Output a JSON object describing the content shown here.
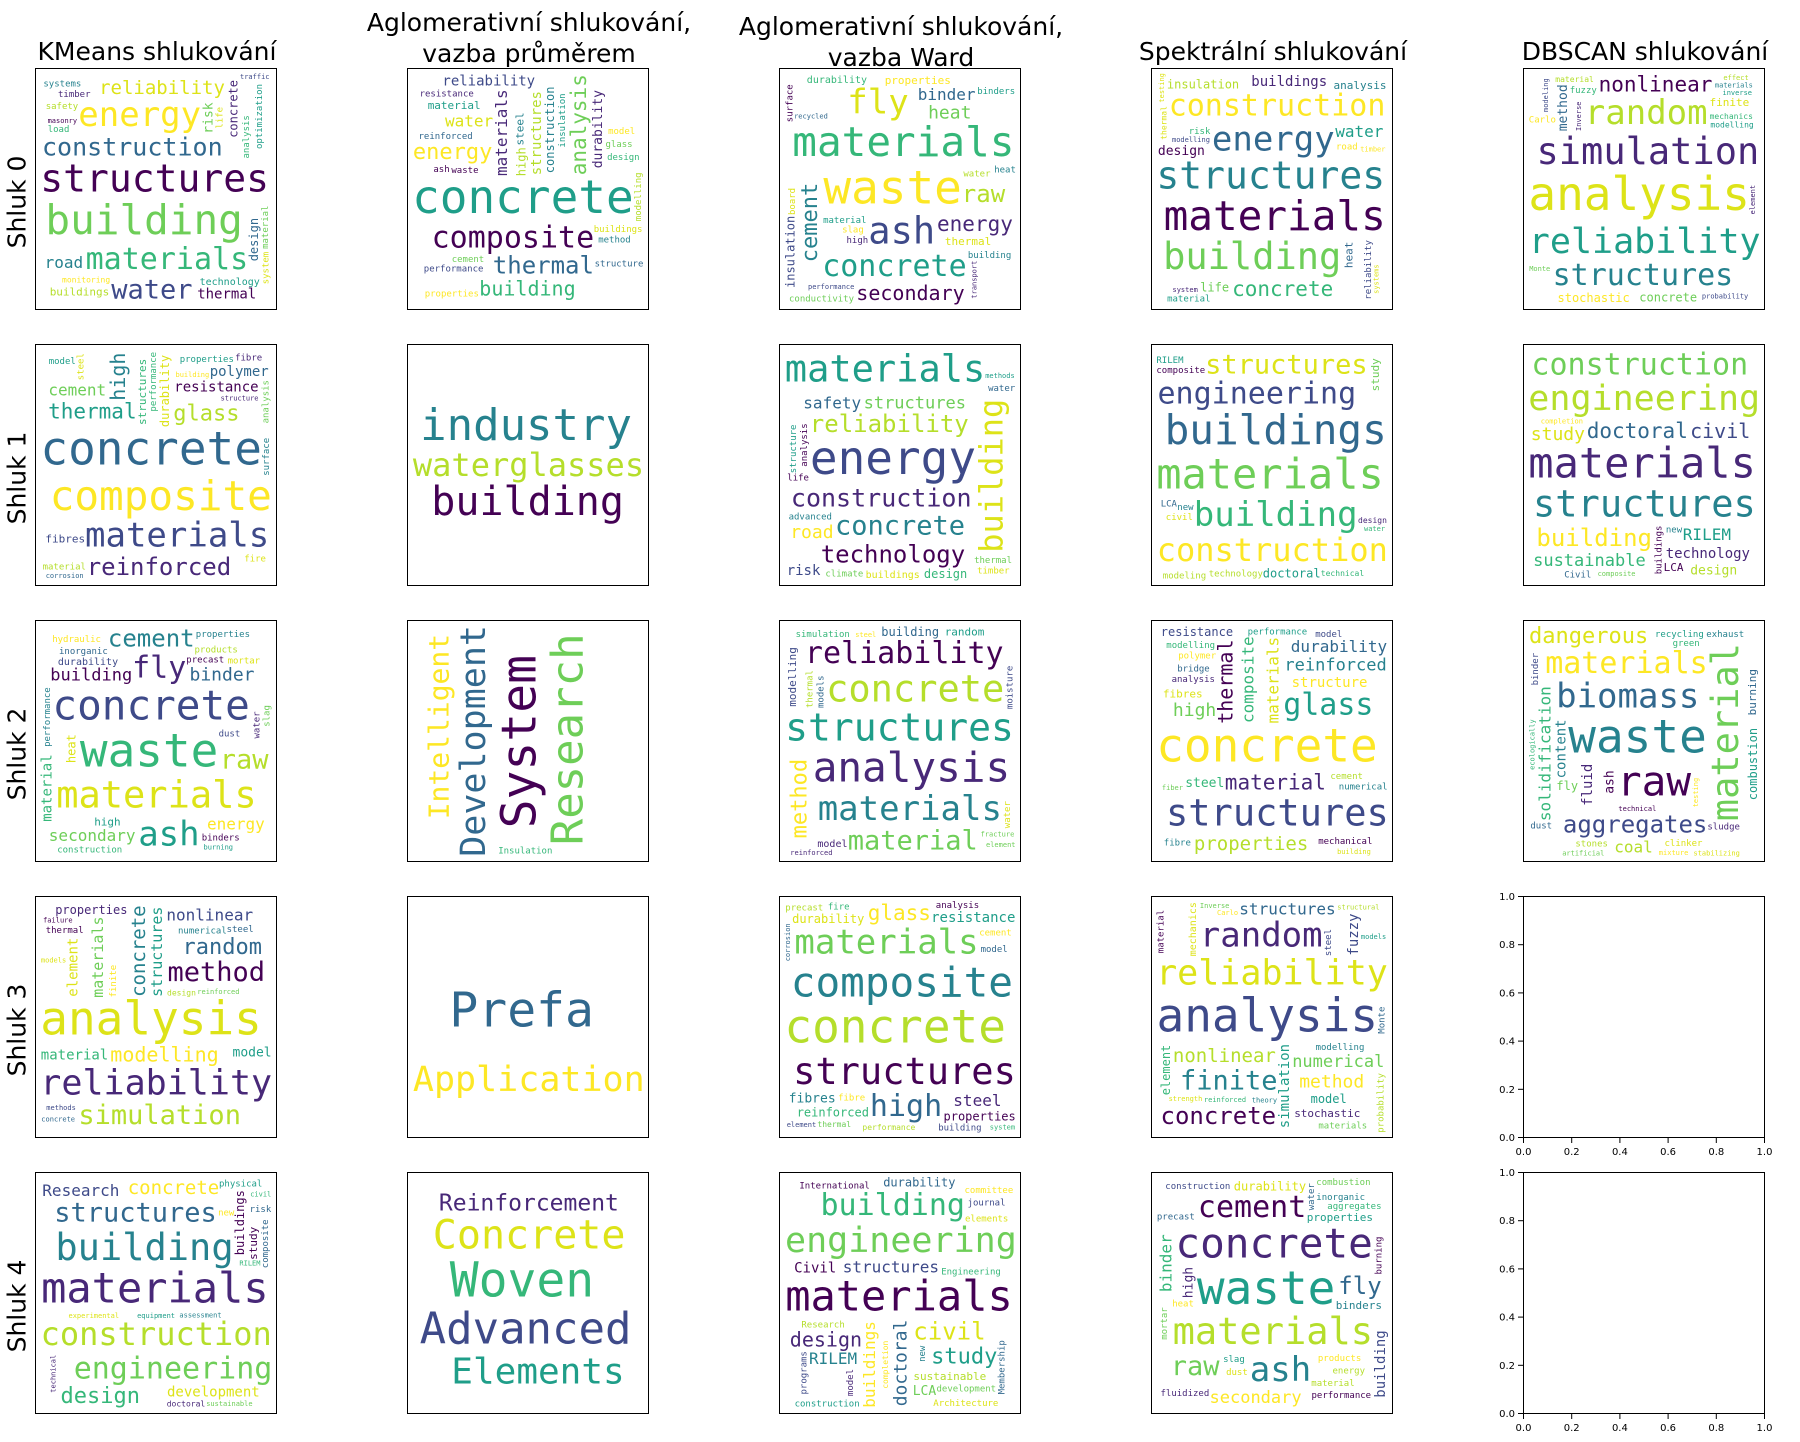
{
  "chart_data": {
    "type": "wordcloud-grid",
    "columns": [
      "KMeans shlukování",
      "Aglomerativní shlukování,\nvazba průměrem",
      "Aglomerativní shlukování,\nvazba Ward",
      "Spektrální shlukování",
      "DBSCAN shlukování"
    ],
    "rows": [
      "Shluk 0",
      "Shluk 1",
      "Shluk 2",
      "Shluk 3",
      "Shluk 4"
    ],
    "palette": [
      "#440154",
      "#482878",
      "#3e4a89",
      "#31688e",
      "#26828e",
      "#1f9e89",
      "#35b779",
      "#6ece58",
      "#b5de2b",
      "#dde318",
      "#fde725"
    ],
    "empty_axes": {
      "xlim": [
        0,
        1
      ],
      "ylim": [
        0,
        1
      ],
      "ticks": [
        "0.0",
        "0.2",
        "0.4",
        "0.6",
        "0.8",
        "1.0"
      ]
    },
    "panels": [
      [
        {
          "words": [
            "structures",
            "building",
            "construction",
            "energy",
            "materials",
            "water",
            "reliability",
            "technology",
            "concrete",
            "buildings",
            "road",
            "thermal",
            "risk",
            "design",
            "monitoring",
            "analysis",
            "insulation",
            "life",
            "optimization",
            "timber",
            "safety",
            "systems",
            "masonry",
            "material",
            "cycle",
            "durability",
            "load",
            "traffic",
            "system",
            "assessment"
          ]
        },
        {
          "words": [
            "concrete",
            "materials",
            "structures",
            "construction",
            "composite",
            "analysis",
            "thermal",
            "energy",
            "building",
            "reliability",
            "water",
            "material",
            "durability",
            "high",
            "steel",
            "waste",
            "cement",
            "reinforced",
            "properties",
            "design",
            "performance",
            "buildings",
            "insulation",
            "resistance",
            "modelling",
            "method",
            "ash",
            "glass",
            "structure",
            "model"
          ]
        },
        {
          "words": [
            "waste",
            "materials",
            "ash",
            "fly",
            "concrete",
            "energy",
            "raw",
            "cement",
            "secondary",
            "heat",
            "binder",
            "properties",
            "durability",
            "insulation",
            "thermal",
            "material",
            "high",
            "water",
            "building",
            "surface",
            "conductivity",
            "recycled",
            "slag",
            "environment",
            "performance",
            "board",
            "binders",
            "transport",
            "construction",
            "heat"
          ]
        },
        {
          "words": [
            "structures",
            "materials",
            "building",
            "energy",
            "construction",
            "concrete",
            "reliability",
            "thermal",
            "water",
            "buildings",
            "insulation",
            "analysis",
            "design",
            "life",
            "heat",
            "road",
            "risk",
            "monitoring",
            "systems",
            "material",
            "system",
            "technology",
            "assessment",
            "optimization",
            "transport",
            "safety",
            "timber",
            "method",
            "modelling",
            "testing"
          ]
        },
        {
          "words": [
            "analysis",
            "reliability",
            "simulation",
            "random",
            "structures",
            "nonlinear",
            "concrete",
            "method",
            "stochastic",
            "mechanics",
            "probability",
            "finite",
            "modelling",
            "element",
            "material",
            "materials",
            "structural",
            "Monte",
            "statistical",
            "Carlo",
            "fuzzy",
            "modeling",
            "methods",
            "inverse",
            "Inverse",
            "effect",
            "theory",
            "failure",
            "computational",
            "algorithms"
          ]
        }
      ],
      [
        {
          "words": [
            "concrete",
            "composite",
            "structures",
            "materials",
            "durability",
            "thermal",
            "reinforced",
            "glass",
            "high",
            "resistance",
            "cement",
            "polymer",
            "reinforcement",
            "performance",
            "fibres",
            "steel",
            "properties",
            "structure",
            "material",
            "surface",
            "experimental",
            "analysis",
            "corrosion",
            "building",
            "temperature",
            "insulation",
            "fire",
            "model",
            "fibre",
            "numerical"
          ]
        },
        {
          "words": [
            "waterglasses",
            "industry",
            "building"
          ]
        },
        {
          "words": [
            "energy",
            "building",
            "materials",
            "construction",
            "reliability",
            "concrete",
            "technology",
            "structures",
            "safety",
            "road",
            "design",
            "risk",
            "buildings",
            "methods",
            "assessment",
            "durability",
            "advanced",
            "analysis",
            "thermal",
            "water",
            "technical",
            "insulation",
            "material",
            "timber",
            "structure",
            "works",
            "optimization",
            "systems",
            "life",
            "climate"
          ]
        },
        {
          "words": [
            "materials",
            "buildings",
            "construction",
            "building",
            "engineering",
            "structures",
            "doctoral",
            "design",
            "technology",
            "sustainable",
            "composite",
            "study",
            "advanced",
            "equipment",
            "technical",
            "mathematical",
            "civil",
            "RILEM",
            "properties",
            "modeling",
            "new",
            "Civil",
            "durability",
            "LCA",
            "completion",
            "water",
            "optimization",
            "experience",
            "Engineering",
            "programs"
          ]
        },
        {
          "words": [
            "materials",
            "engineering",
            "structures",
            "buildings",
            "construction",
            "doctoral",
            "building",
            "sustainable",
            "civil",
            "study",
            "RILEM",
            "technology",
            "design",
            "new",
            "LCA",
            "composite",
            "Civil",
            "completion",
            "durability",
            "equipment",
            "Engineering",
            "experience",
            "Membership",
            "modeling",
            "Research",
            "Architecture",
            "programs",
            "mathematical",
            "development",
            "technical"
          ]
        }
      ],
      [
        {
          "words": [
            "waste",
            "concrete",
            "materials",
            "ash",
            "fly",
            "raw",
            "cement",
            "building",
            "secondary",
            "binder",
            "energy",
            "material",
            "durability",
            "heat",
            "high",
            "water",
            "products",
            "properties",
            "binders",
            "slag",
            "inorganic",
            "hydraulic",
            "construction",
            "dust",
            "mortar",
            "burning",
            "insulation",
            "transport",
            "performance",
            "precast"
          ]
        },
        {
          "words": [
            "System",
            "Research",
            "Development",
            "Intelligent",
            "Insulation"
          ]
        },
        {
          "words": [
            "structures",
            "analysis",
            "concrete",
            "materials",
            "reliability",
            "material",
            "building",
            "method",
            "simulation",
            "modelling",
            "water",
            "random",
            "model",
            "thermal",
            "mechanics",
            "properties",
            "fracture",
            "nonlinear",
            "steel",
            "construction",
            "moisture",
            "insulation",
            "transport",
            "reinforced",
            "stochastic",
            "numerical",
            "experimental",
            "element",
            "models",
            "design"
          ]
        },
        {
          "words": [
            "concrete",
            "composite",
            "structures",
            "materials",
            "glass",
            "material",
            "properties",
            "reinforced",
            "thermal",
            "high",
            "durability",
            "structure",
            "steel",
            "resistance",
            "fibres",
            "performance",
            "analysis",
            "cement",
            "numerical",
            "mechanical",
            "fiber",
            "bridge",
            "polymer",
            "modelling",
            "model",
            "building",
            "insulation",
            "temperature",
            "reinforcement",
            "fibre"
          ]
        },
        {
          "words": [
            "waste",
            "raw",
            "material",
            "biomass",
            "materials",
            "solidification",
            "aggregates",
            "dangerous",
            "combustion",
            "fluid",
            "coal",
            "content",
            "ash",
            "fly",
            "burning",
            "testing",
            "green",
            "binder",
            "clinker",
            "recycling",
            "sludge",
            "stones",
            "exhaust",
            "technical",
            "artificial",
            "dust",
            "mixture",
            "ecologically",
            "liquidation",
            "stabilizing"
          ]
        }
      ],
      [
        {
          "words": [
            "analysis",
            "structures",
            "reliability",
            "simulation",
            "concrete",
            "method",
            "materials",
            "random",
            "modelling",
            "material",
            "nonlinear",
            "element",
            "model",
            "properties",
            "design",
            "numerical",
            "thermal",
            "reinforced",
            "steel",
            "finite",
            "mechanics",
            "methods",
            "models",
            "structural",
            "computational",
            "stochastic",
            "engineering",
            "failure",
            "stochastic",
            "concrete"
          ]
        },
        {
          "words": [
            "Prefa",
            "Application"
          ]
        },
        {
          "words": [
            "concrete",
            "composite",
            "structures",
            "materials",
            "high",
            "glass",
            "reinforced",
            "structure",
            "durability",
            "resistance",
            "steel",
            "performance",
            "fibres",
            "properties",
            "thermal",
            "model",
            "cement",
            "fire",
            "building",
            "material",
            "reinforcement",
            "fiber",
            "precast",
            "construction",
            "analysis",
            "cementitious",
            "corrosion",
            "fibre",
            "system",
            "element"
          ]
        },
        {
          "words": [
            "analysis",
            "reliability",
            "simulation",
            "random",
            "nonlinear",
            "finite",
            "concrete",
            "numerical",
            "structures",
            "method",
            "element",
            "fuzzy",
            "mechanics",
            "model",
            "stochastic",
            "probability",
            "modelling",
            "material",
            "materials",
            "Monte",
            "Carlo",
            "reinforced",
            "steel",
            "strength",
            "models",
            "methods",
            "structural",
            "theory",
            "computational",
            "Inverse"
          ]
        },
        {
          "words": []
        }
      ],
      [
        {
          "words": [
            "materials",
            "construction",
            "building",
            "buildings",
            "engineering",
            "structures",
            "concrete",
            "design",
            "Research",
            "development",
            "equipment",
            "doctoral",
            "properties",
            "assessment",
            "study",
            "sustainable",
            "composite",
            "technology",
            "RILEM",
            "modeling",
            "experimental",
            "physical",
            "technical",
            "advanced",
            "reliability",
            "mathematical",
            "material",
            "risk",
            "new",
            "civil"
          ]
        },
        {
          "words": [
            "Woven",
            "Advanced",
            "Concrete",
            "Elements",
            "Reinforcement"
          ]
        },
        {
          "words": [
            "materials",
            "engineering",
            "doctoral",
            "buildings",
            "building",
            "structures",
            "civil",
            "study",
            "design",
            "sustainable",
            "RILEM",
            "Civil",
            "LCA",
            "durability",
            "completion",
            "Engineering",
            "programs",
            "Architecture",
            "construction",
            "model",
            "Research",
            "new",
            "International",
            "development",
            "Membership",
            "committee",
            "participation",
            "journal",
            "elements",
            "integrated"
          ]
        },
        {
          "words": [
            "waste",
            "concrete",
            "materials",
            "ash",
            "cement",
            "raw",
            "fly",
            "secondary",
            "binder",
            "building",
            "durability",
            "properties",
            "high",
            "material",
            "binders",
            "performance",
            "mortar",
            "water",
            "products",
            "aggregates",
            "construction",
            "dust",
            "slag",
            "fluidized",
            "energy",
            "inorganic",
            "burning",
            "combustion",
            "precast",
            "heat"
          ]
        },
        {
          "words": []
        }
      ]
    ]
  }
}
